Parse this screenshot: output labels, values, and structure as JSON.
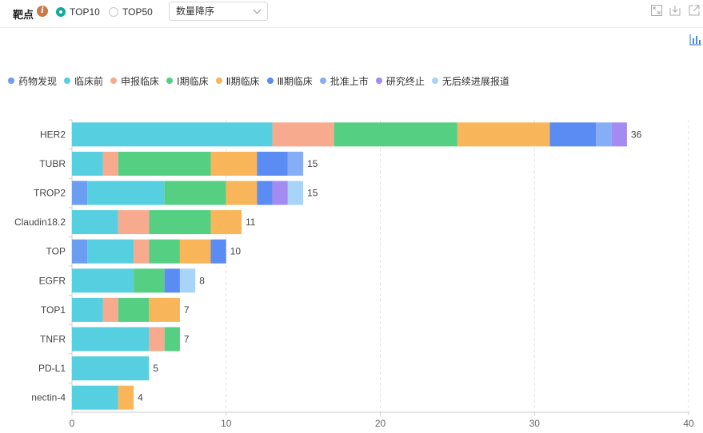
{
  "toolbar": {
    "label": "靶点",
    "info_icon": "i",
    "radios": [
      {
        "label": "TOP10",
        "selected": true
      },
      {
        "label": "TOP50",
        "selected": false
      }
    ],
    "sort_select": "数量降序",
    "icons": [
      "expand-icon",
      "download-icon",
      "external-link-icon"
    ],
    "chart_toggle_icon": "bar-chart-icon"
  },
  "colors": {
    "accent": "#13a89e",
    "series": [
      "#6b9df0",
      "#56cfe0",
      "#f7aa8e",
      "#55cf82",
      "#f8b55a",
      "#5b8cf4",
      "#86aef6",
      "#a48bf1",
      "#a9d4f9"
    ]
  },
  "chart_data": {
    "type": "bar",
    "orientation": "horizontal",
    "stacked": true,
    "categories": [
      "HER2",
      "TUBR",
      "TROP2",
      "Claudin18.2",
      "TOP",
      "EGFR",
      "TOP1",
      "TNFR",
      "PD-L1",
      "nectin-4"
    ],
    "series": [
      {
        "name": "药物发现",
        "values": [
          0,
          0,
          1,
          0,
          1,
          0,
          0,
          0,
          0,
          0
        ]
      },
      {
        "name": "临床前",
        "values": [
          13,
          2,
          5,
          3,
          3,
          4,
          2,
          5,
          5,
          3
        ]
      },
      {
        "name": "申报临床",
        "values": [
          4,
          1,
          0,
          2,
          1,
          0,
          1,
          1,
          0,
          0
        ]
      },
      {
        "name": "Ⅰ期临床",
        "values": [
          8,
          6,
          4,
          4,
          2,
          2,
          2,
          1,
          0,
          0
        ]
      },
      {
        "name": "Ⅱ期临床",
        "values": [
          6,
          3,
          2,
          2,
          2,
          0,
          2,
          0,
          0,
          1
        ]
      },
      {
        "name": "Ⅲ期临床",
        "values": [
          3,
          2,
          1,
          0,
          1,
          1,
          0,
          0,
          0,
          0
        ]
      },
      {
        "name": "批准上市",
        "values": [
          1,
          1,
          0,
          0,
          0,
          0,
          0,
          0,
          0,
          0
        ]
      },
      {
        "name": "研究终止",
        "values": [
          1,
          0,
          1,
          0,
          0,
          0,
          0,
          0,
          0,
          0
        ]
      },
      {
        "name": "无后续进展报道",
        "values": [
          0,
          0,
          1,
          0,
          0,
          1,
          0,
          0,
          0,
          0
        ]
      }
    ],
    "totals": [
      36,
      15,
      15,
      11,
      10,
      8,
      7,
      7,
      5,
      4
    ],
    "xlim": [
      0,
      40
    ],
    "xticks": [
      0,
      10,
      20,
      30,
      40
    ],
    "grid": "vertical-dashed",
    "legend": "top-left"
  }
}
